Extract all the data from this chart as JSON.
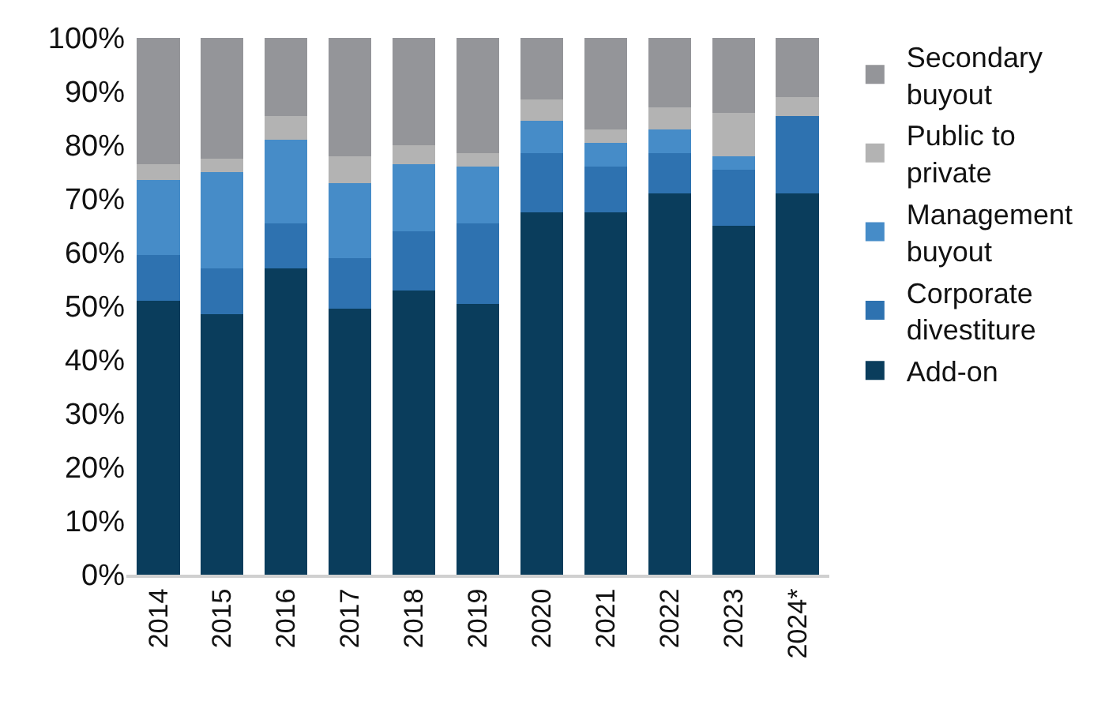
{
  "chart_data": {
    "type": "bar",
    "stacked": true,
    "categories": [
      "2014",
      "2015",
      "2016",
      "2017",
      "2018",
      "2019",
      "2020",
      "2021",
      "2022",
      "2023",
      "2024*"
    ],
    "series": [
      {
        "name": "Add-on",
        "color": "#0a3d5c",
        "values": [
          51,
          48.5,
          57,
          49.5,
          53,
          50.5,
          67.5,
          67.5,
          71,
          65,
          71
        ]
      },
      {
        "name": "Corporate divestiture",
        "color": "#2e72b0",
        "values": [
          8.5,
          8.5,
          8.5,
          9.5,
          11,
          15,
          11,
          8.5,
          7.5,
          10.5,
          14.5
        ]
      },
      {
        "name": "Management buyout",
        "color": "#468cc8",
        "values": [
          14,
          18,
          15.5,
          14,
          12.5,
          10.5,
          6,
          4.5,
          4.5,
          2.5,
          0
        ]
      },
      {
        "name": "Public to private",
        "color": "#b3b3b3",
        "values": [
          3,
          2.5,
          4.5,
          5,
          3.5,
          2.5,
          4,
          2.5,
          4,
          8,
          3.5
        ]
      },
      {
        "name": "Secondary buyout",
        "color": "#949599",
        "values": [
          23.5,
          22.5,
          14.5,
          22,
          20,
          21.5,
          11.5,
          17,
          13,
          14,
          11
        ]
      }
    ],
    "ylim": [
      0,
      100
    ],
    "yticks": [
      {
        "value": 0,
        "label": "0%"
      },
      {
        "value": 10,
        "label": "10%"
      },
      {
        "value": 20,
        "label": "20%"
      },
      {
        "value": 30,
        "label": "30%"
      },
      {
        "value": 40,
        "label": "40%"
      },
      {
        "value": 50,
        "label": "50%"
      },
      {
        "value": 60,
        "label": "60%"
      },
      {
        "value": 70,
        "label": "70%"
      },
      {
        "value": 80,
        "label": "80%"
      },
      {
        "value": 90,
        "label": "90%"
      },
      {
        "value": 100,
        "label": "100%"
      }
    ],
    "grid": false,
    "legend": "right"
  }
}
